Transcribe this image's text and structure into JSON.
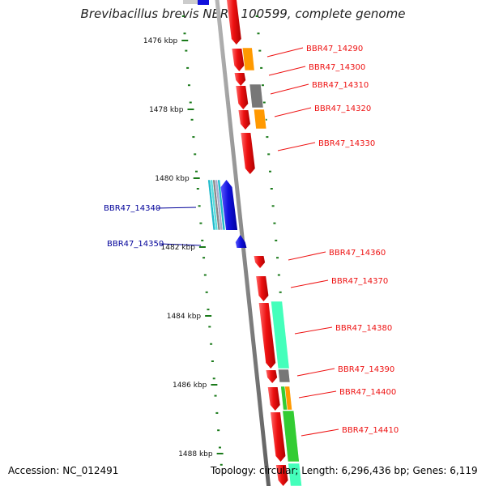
{
  "title": "Brevibacillus brevis NBRC 100599, complete genome",
  "footer": {
    "accession": "Accession: NC_012491",
    "summary": "Topology: circular; Length: 6,296,436 bp; Genes: 6,119"
  },
  "colors": {
    "forward_gene": "#ee1111",
    "reverse_gene": "#1010dd",
    "backbone": "#8a8a8a",
    "tick": "#1a7a1a",
    "orange": "#ff9900",
    "gray": "#777777",
    "teal": "#44ffbb",
    "green": "#33cc33",
    "cyan": "#22bbcc"
  },
  "kbp_labels": [
    "1476 kbp",
    "1478 kbp",
    "1480 kbp",
    "1482 kbp",
    "1484 kbp",
    "1486 kbp",
    "1488 kbp"
  ],
  "gene_labels": [
    {
      "text": "BBR47_14290",
      "strand": "forward"
    },
    {
      "text": "BBR47_14300",
      "strand": "forward"
    },
    {
      "text": "BBR47_14310",
      "strand": "forward"
    },
    {
      "text": "BBR47_14320",
      "strand": "forward"
    },
    {
      "text": "BBR47_14330",
      "strand": "forward"
    },
    {
      "text": "BBR47_14340",
      "strand": "reverse"
    },
    {
      "text": "BBR47_14350",
      "strand": "reverse"
    },
    {
      "text": "BBR47_14360",
      "strand": "forward"
    },
    {
      "text": "BBR47_14370",
      "strand": "forward"
    },
    {
      "text": "BBR47_14380",
      "strand": "forward"
    },
    {
      "text": "BBR47_14390",
      "strand": "forward"
    },
    {
      "text": "BBR47_14400",
      "strand": "forward"
    },
    {
      "text": "BBR47_14410",
      "strand": "forward"
    }
  ]
}
